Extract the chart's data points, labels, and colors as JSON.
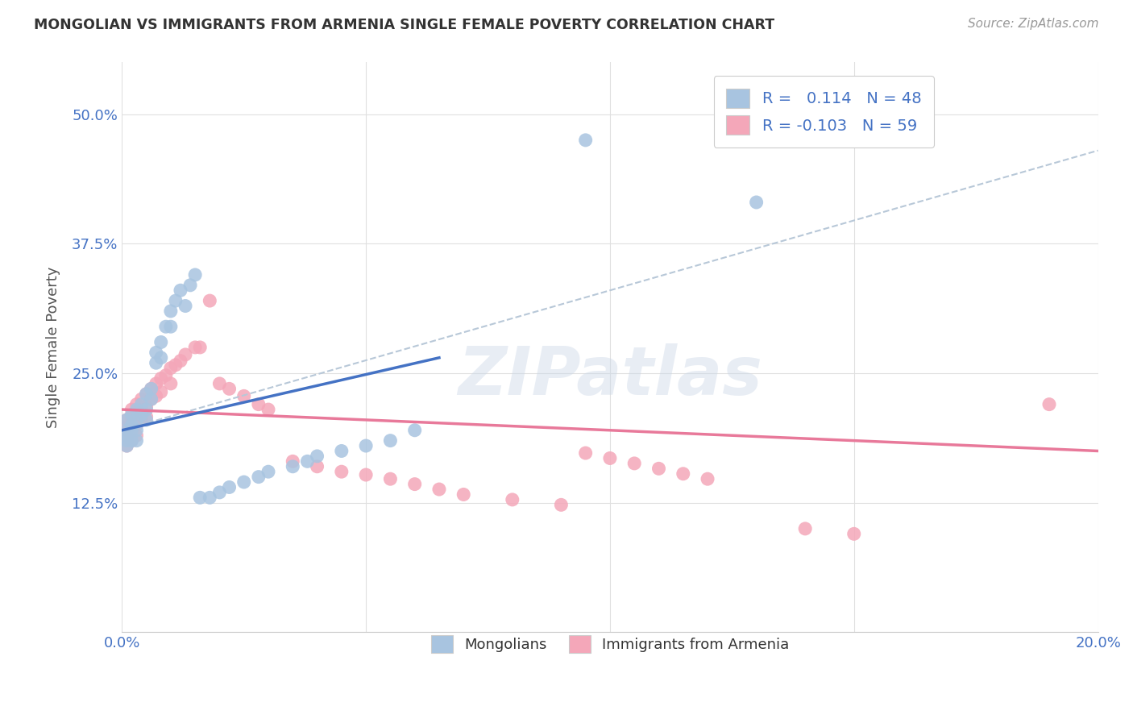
{
  "title": "MONGOLIAN VS IMMIGRANTS FROM ARMENIA SINGLE FEMALE POVERTY CORRELATION CHART",
  "source": "Source: ZipAtlas.com",
  "ylabel": "Single Female Poverty",
  "xlim": [
    0.0,
    0.2
  ],
  "ylim": [
    0.0,
    0.55
  ],
  "mongolian_color": "#a8c4e0",
  "armenia_color": "#f4a7b9",
  "mongolian_line_color": "#4472c4",
  "armenia_line_color": "#e8799a",
  "R_mongolian": 0.114,
  "N_mongolian": 48,
  "R_armenia": -0.103,
  "N_armenia": 59,
  "background_color": "#ffffff",
  "grid_color": "#e0e0e0",
  "mongolian_x": [
    0.001,
    0.001,
    0.001,
    0.001,
    0.001,
    0.002,
    0.002,
    0.002,
    0.002,
    0.003,
    0.003,
    0.003,
    0.003,
    0.004,
    0.004,
    0.005,
    0.005,
    0.005,
    0.006,
    0.006,
    0.007,
    0.007,
    0.008,
    0.008,
    0.009,
    0.01,
    0.01,
    0.011,
    0.012,
    0.013,
    0.014,
    0.015,
    0.016,
    0.018,
    0.02,
    0.022,
    0.025,
    0.028,
    0.03,
    0.035,
    0.038,
    0.04,
    0.045,
    0.05,
    0.055,
    0.06,
    0.095,
    0.13
  ],
  "mongolian_y": [
    0.205,
    0.195,
    0.19,
    0.185,
    0.18,
    0.21,
    0.2,
    0.195,
    0.185,
    0.215,
    0.205,
    0.195,
    0.185,
    0.22,
    0.21,
    0.23,
    0.215,
    0.205,
    0.235,
    0.225,
    0.27,
    0.26,
    0.28,
    0.265,
    0.295,
    0.31,
    0.295,
    0.32,
    0.33,
    0.315,
    0.335,
    0.345,
    0.13,
    0.13,
    0.135,
    0.14,
    0.145,
    0.15,
    0.155,
    0.16,
    0.165,
    0.17,
    0.175,
    0.18,
    0.185,
    0.195,
    0.475,
    0.415
  ],
  "armenia_x": [
    0.001,
    0.001,
    0.001,
    0.001,
    0.001,
    0.002,
    0.002,
    0.002,
    0.002,
    0.002,
    0.003,
    0.003,
    0.003,
    0.003,
    0.004,
    0.004,
    0.004,
    0.005,
    0.005,
    0.005,
    0.006,
    0.006,
    0.007,
    0.007,
    0.008,
    0.008,
    0.009,
    0.01,
    0.01,
    0.011,
    0.012,
    0.013,
    0.015,
    0.016,
    0.018,
    0.02,
    0.022,
    0.025,
    0.028,
    0.03,
    0.035,
    0.04,
    0.045,
    0.05,
    0.055,
    0.06,
    0.065,
    0.07,
    0.08,
    0.09,
    0.095,
    0.1,
    0.105,
    0.11,
    0.115,
    0.12,
    0.14,
    0.15,
    0.19
  ],
  "armenia_y": [
    0.205,
    0.198,
    0.192,
    0.186,
    0.18,
    0.215,
    0.205,
    0.198,
    0.192,
    0.185,
    0.22,
    0.21,
    0.2,
    0.19,
    0.225,
    0.215,
    0.205,
    0.23,
    0.218,
    0.208,
    0.235,
    0.225,
    0.24,
    0.228,
    0.245,
    0.232,
    0.248,
    0.255,
    0.24,
    0.258,
    0.262,
    0.268,
    0.275,
    0.275,
    0.32,
    0.24,
    0.235,
    0.228,
    0.22,
    0.215,
    0.165,
    0.16,
    0.155,
    0.152,
    0.148,
    0.143,
    0.138,
    0.133,
    0.128,
    0.123,
    0.173,
    0.168,
    0.163,
    0.158,
    0.153,
    0.148,
    0.1,
    0.095,
    0.22
  ],
  "mon_trend_x0": 0.0,
  "mon_trend_y0": 0.195,
  "mon_trend_x1": 0.065,
  "mon_trend_y1": 0.265,
  "arm_trend_x0": 0.0,
  "arm_trend_y0": 0.215,
  "arm_trend_x1": 0.2,
  "arm_trend_y1": 0.175,
  "dash_trend_x0": 0.0,
  "dash_trend_y0": 0.195,
  "dash_trend_x1": 0.2,
  "dash_trend_y1": 0.465
}
